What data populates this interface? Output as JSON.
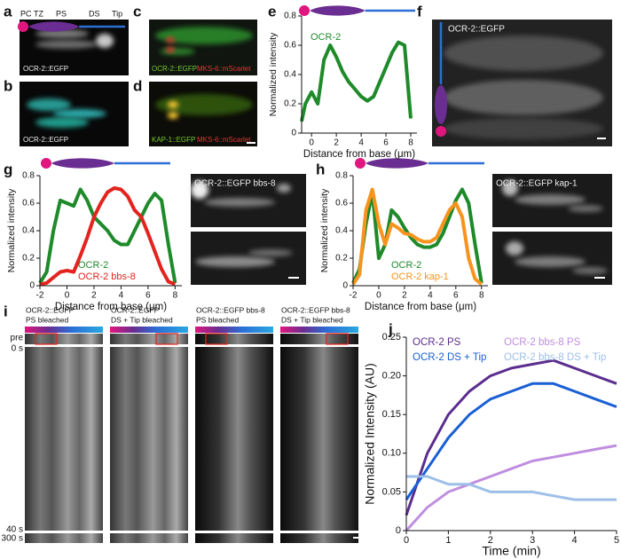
{
  "panel_letters": [
    "a",
    "b",
    "c",
    "d",
    "e",
    "f",
    "g",
    "h",
    "i",
    "j"
  ],
  "image_labels": {
    "a": {
      "regions": [
        "PC",
        "TZ",
        "PS",
        "DS",
        "Tip"
      ],
      "caption": "OCR-2::EGFP"
    },
    "b": {
      "caption": "OCR-2::EGFP"
    },
    "c": {
      "green": "OCR-2::EGFP",
      "red": "MKS-6::mScarlet"
    },
    "d": {
      "green": "KAP-1::EGFP",
      "red": "MKS-6::mScarlet"
    },
    "f": {
      "caption": "OCR-2::EGFP"
    },
    "g": {
      "caption": "OCR-2::EGFP bbs-8"
    },
    "h": {
      "caption": "OCR-2::EGFP kap-1"
    }
  },
  "kymographs": {
    "headers": [
      [
        "OCR-2::EGFP",
        "PS bleached"
      ],
      [
        "OCR-2::EGFP",
        "DS + Tip bleached"
      ],
      [
        "OCR-2::EGFP bbs-8",
        "PS bleached"
      ],
      [
        "OCR-2::EGFP bbs-8",
        "DS + Tip bleached"
      ]
    ],
    "time_labels": [
      "pre",
      "0 s",
      "40 s",
      "300 s"
    ]
  },
  "chart_data": [
    {
      "type": "line",
      "xlabel": "Distance from base (μm)",
      "ylabel": "Normalized intensity",
      "x": [
        -0.8,
        -0.5,
        0,
        0.5,
        1,
        1.5,
        2,
        2.5,
        3,
        3.5,
        4,
        4.5,
        5,
        5.5,
        6,
        6.5,
        7,
        7.5,
        8
      ],
      "series": [
        {
          "name": "OCR-2",
          "color": "#1e8a2a",
          "values": [
            0.08,
            0.2,
            0.28,
            0.2,
            0.5,
            0.6,
            0.52,
            0.42,
            0.35,
            0.3,
            0.25,
            0.22,
            0.25,
            0.35,
            0.45,
            0.55,
            0.62,
            0.6,
            0.1
          ]
        }
      ],
      "xlim": [
        -0.8,
        8.5
      ],
      "xticks": [
        0,
        2,
        4,
        6,
        8
      ],
      "ylim": [
        0,
        0.8
      ],
      "yticks": [
        0,
        0.2,
        0.4,
        0.6,
        0.8
      ]
    },
    {
      "type": "line",
      "xlabel": "Distance from base (μm)",
      "ylabel": "Normalized intensity",
      "x": [
        -2,
        -1.5,
        -1,
        -0.5,
        0,
        0.5,
        1,
        1.5,
        2,
        2.5,
        3,
        3.5,
        4,
        4.5,
        5,
        5.5,
        6,
        6.5,
        7,
        7.5,
        8
      ],
      "series": [
        {
          "name": "OCR-2",
          "color": "#1e8a2a",
          "values": [
            0.02,
            0.1,
            0.4,
            0.62,
            0.6,
            0.58,
            0.7,
            0.62,
            0.5,
            0.45,
            0.4,
            0.33,
            0.3,
            0.3,
            0.4,
            0.5,
            0.6,
            0.67,
            0.62,
            0.3,
            0.02
          ]
        },
        {
          "name": "OCR-2 bbs-8",
          "color": "#e3231e",
          "values": [
            0.01,
            0.02,
            0.06,
            0.1,
            0.11,
            0.1,
            0.22,
            0.35,
            0.5,
            0.6,
            0.68,
            0.71,
            0.7,
            0.65,
            0.55,
            0.5,
            0.38,
            0.25,
            0.12,
            0.03,
            0.01
          ]
        }
      ],
      "xlim": [
        -2,
        8.5
      ],
      "xticks": [
        -2,
        0,
        2,
        4,
        6,
        8
      ],
      "ylim": [
        0,
        0.8
      ],
      "yticks": [
        0,
        0.2,
        0.4,
        0.6,
        0.8
      ]
    },
    {
      "type": "line",
      "xlabel": "Distance from base (μm)",
      "ylabel": "Normalized intensity",
      "x": [
        -2,
        -1.5,
        -1,
        -0.5,
        0,
        0.5,
        1,
        1.5,
        2,
        2.5,
        3,
        3.5,
        4,
        4.5,
        5,
        5.5,
        6,
        6.5,
        7,
        7.5,
        8
      ],
      "series": [
        {
          "name": "OCR-2",
          "color": "#1e8a2a",
          "values": [
            0.02,
            0.12,
            0.45,
            0.68,
            0.2,
            0.3,
            0.55,
            0.5,
            0.42,
            0.35,
            0.3,
            0.28,
            0.28,
            0.3,
            0.38,
            0.5,
            0.62,
            0.7,
            0.6,
            0.3,
            0.02
          ]
        },
        {
          "name": "OCR-2 kap-1",
          "color": "#f7941d",
          "values": [
            0.01,
            0.08,
            0.55,
            0.7,
            0.45,
            0.3,
            0.45,
            0.42,
            0.38,
            0.37,
            0.34,
            0.32,
            0.32,
            0.35,
            0.45,
            0.55,
            0.6,
            0.5,
            0.2,
            0.05,
            0.01
          ]
        }
      ],
      "xlim": [
        -2,
        8.5
      ],
      "xticks": [
        -2,
        0,
        2,
        4,
        6,
        8
      ],
      "ylim": [
        0,
        0.8
      ],
      "yticks": [
        0,
        0.2,
        0.4,
        0.6,
        0.8
      ]
    },
    {
      "type": "line",
      "xlabel": "Time (min)",
      "ylabel": "Normalized Intensity (AU)",
      "x": [
        0,
        0.5,
        1,
        1.5,
        2,
        2.5,
        3,
        3.5,
        4,
        4.5,
        5
      ],
      "series": [
        {
          "name": "OCR-2 PS",
          "color": "#5b2d8e",
          "values": [
            0.02,
            0.1,
            0.15,
            0.18,
            0.2,
            0.21,
            0.215,
            0.22,
            0.21,
            0.2,
            0.19
          ]
        },
        {
          "name": "OCR-2 DS + Tip",
          "color": "#1a5fd4",
          "values": [
            0.04,
            0.08,
            0.12,
            0.15,
            0.17,
            0.18,
            0.19,
            0.19,
            0.18,
            0.17,
            0.16
          ]
        },
        {
          "name": "OCR-2 bbs-8 PS",
          "color": "#c08ee0",
          "values": [
            0,
            0.03,
            0.05,
            0.06,
            0.07,
            0.08,
            0.09,
            0.095,
            0.1,
            0.105,
            0.11
          ]
        },
        {
          "name": "OCR-2 bbs-8 DS + Tip",
          "color": "#9ebfe8",
          "values": [
            0.07,
            0.07,
            0.06,
            0.06,
            0.05,
            0.05,
            0.05,
            0.045,
            0.04,
            0.04,
            0.04
          ]
        }
      ],
      "xlim": [
        0,
        5
      ],
      "xticks": [
        0,
        1,
        2,
        3,
        4,
        5
      ],
      "ylim": [
        0,
        0.25
      ],
      "yticks": [
        0,
        0.05,
        {
          "value": 0.1,
          "label": "0.10"
        },
        0.15,
        {
          "value": 0.2,
          "label": "0.20"
        },
        0.25
      ]
    }
  ]
}
